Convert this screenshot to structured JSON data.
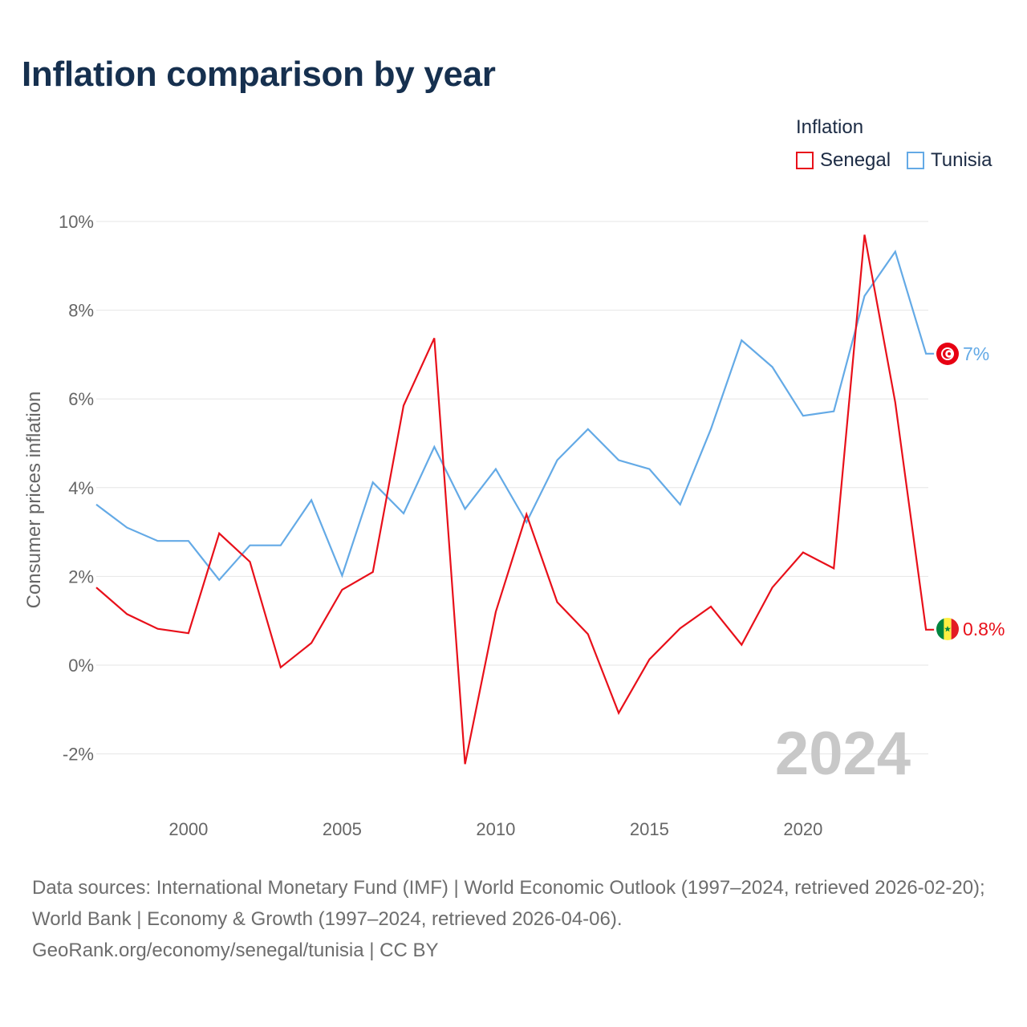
{
  "title": "Inflation comparison by year",
  "legend": {
    "title": "Inflation",
    "items": [
      {
        "label": "Senegal",
        "color": "#e8101a"
      },
      {
        "label": "Tunisia",
        "color": "#64aae6"
      }
    ]
  },
  "year_watermark": "2024",
  "end_labels": {
    "senegal": "0.8%",
    "tunisia": "7%"
  },
  "footer": {
    "sources": "Data sources: International Monetary Fund (IMF) | World Economic Outlook (1997–2024, retrieved 2026-02-20); World Bank | Economy & Growth (1997–2024, retrieved 2026-04-06).",
    "credit": "GeoRank.org/economy/senegal/tunisia | CC BY"
  },
  "chart_data": {
    "type": "line",
    "title": "Inflation comparison by year",
    "xlabel": "",
    "ylabel": "Consumer prices inflation",
    "xlim": [
      1997,
      2024
    ],
    "ylim": [
      -3.2,
      10
    ],
    "x_ticks": [
      2000,
      2005,
      2010,
      2015,
      2020
    ],
    "y_ticks": [
      -2,
      0,
      2,
      4,
      6,
      8,
      10
    ],
    "y_tick_labels": [
      "-2%",
      "0%",
      "2%",
      "4%",
      "6%",
      "8%",
      "10%"
    ],
    "grid": true,
    "x": [
      1997,
      1998,
      1999,
      2000,
      2001,
      2002,
      2003,
      2004,
      2005,
      2006,
      2007,
      2008,
      2009,
      2010,
      2011,
      2012,
      2013,
      2014,
      2015,
      2016,
      2017,
      2018,
      2019,
      2020,
      2021,
      2022,
      2023,
      2024
    ],
    "series": [
      {
        "name": "Senegal",
        "color": "#e8101a",
        "values": [
          1.75,
          1.15,
          0.82,
          0.72,
          2.97,
          2.33,
          -0.05,
          0.5,
          1.7,
          2.1,
          5.85,
          7.37,
          -2.23,
          1.2,
          3.4,
          1.42,
          0.7,
          -1.08,
          0.13,
          0.83,
          1.32,
          0.46,
          1.75,
          2.54,
          2.18,
          9.7,
          5.92,
          0.8
        ]
      },
      {
        "name": "Tunisia",
        "color": "#64aae6",
        "values": [
          3.62,
          3.1,
          2.8,
          2.8,
          1.92,
          2.7,
          2.7,
          3.72,
          2.02,
          4.12,
          3.42,
          4.92,
          3.52,
          4.42,
          3.22,
          4.62,
          5.32,
          4.62,
          4.42,
          3.62,
          5.32,
          7.32,
          6.72,
          5.62,
          5.72,
          8.32,
          9.32,
          7.02
        ]
      }
    ]
  }
}
